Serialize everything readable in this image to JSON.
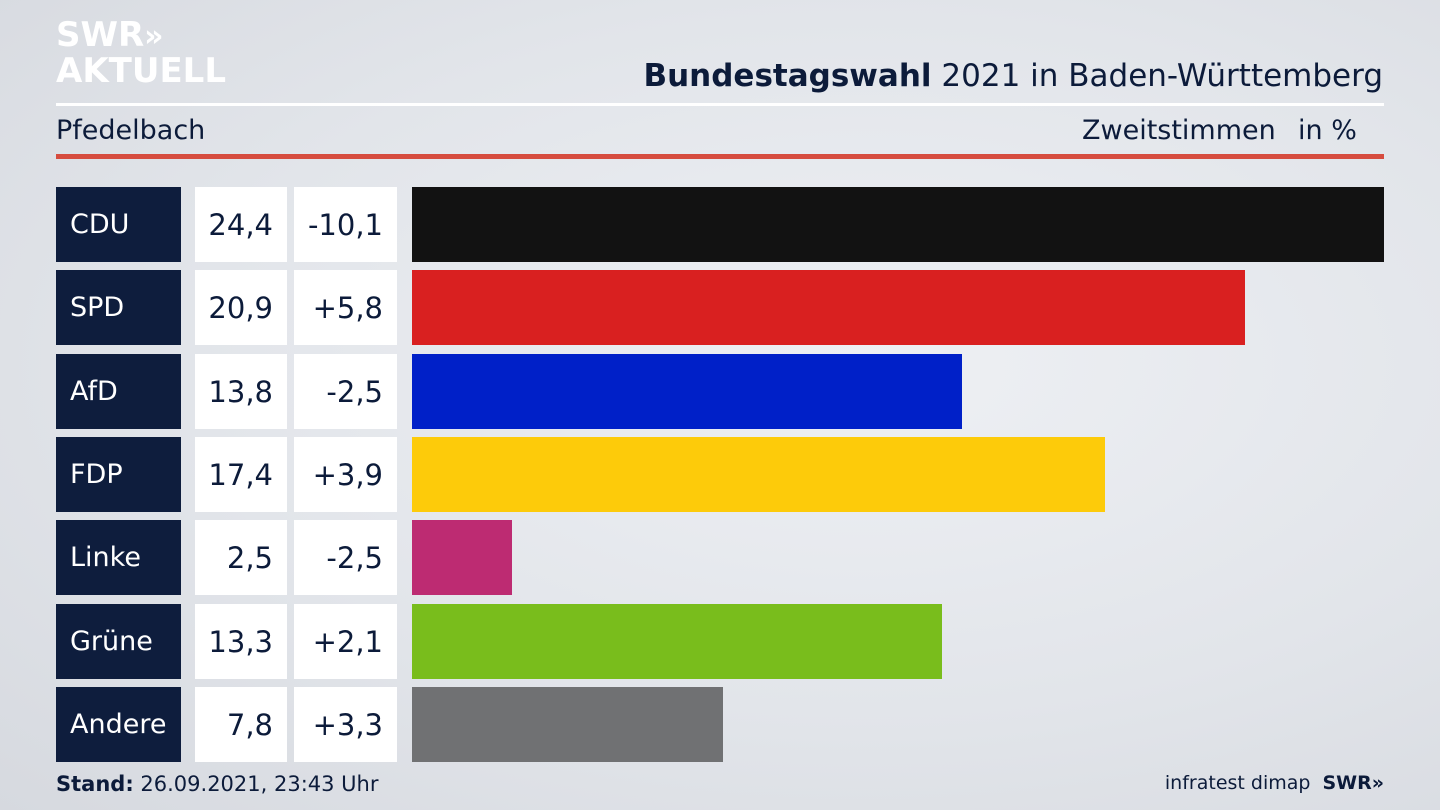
{
  "brand": {
    "logo_line1": "SWR",
    "logo_chevrons": "»",
    "logo_line2": "AKTUELL"
  },
  "header": {
    "title_bold": "Bundestagswahl",
    "title_rest": " 2021 in Baden-Württemberg",
    "location": "Pfedelbach",
    "measure": "Zweitstimmen",
    "unit": "in %"
  },
  "chart_data": {
    "type": "bar",
    "orientation": "horizontal",
    "categories": [
      "CDU",
      "SPD",
      "AfD",
      "FDP",
      "Linke",
      "Grüne",
      "Andere"
    ],
    "values": [
      24.4,
      20.9,
      13.8,
      17.4,
      2.5,
      13.3,
      7.8
    ],
    "value_labels": [
      "24,4",
      "20,9",
      "13,8",
      "17,4",
      "2,5",
      "13,3",
      "7,8"
    ],
    "diff_labels": [
      "-10,1",
      "+5,8",
      "-2,5",
      "+3,9",
      "-2,5",
      "+2,1",
      "+3,3"
    ],
    "colors": [
      "#121212",
      "#d92020",
      "#0020c8",
      "#fdcb0a",
      "#bd2b72",
      "#79bd1c",
      "#707173"
    ],
    "xlim": [
      0,
      24.4
    ]
  },
  "footer": {
    "stand_label": "Stand:",
    "stand_value": " 26.09.2021, 23:43 Uhr",
    "source": "infratest dimap",
    "brand_small": "SWR»"
  }
}
